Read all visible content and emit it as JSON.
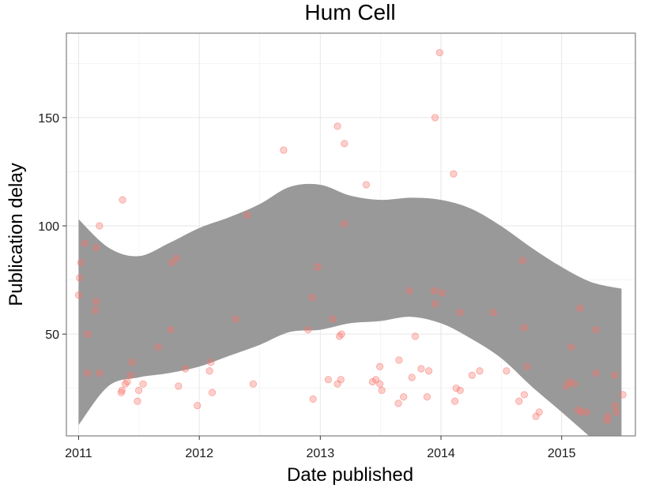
{
  "chart_data": {
    "type": "scatter",
    "title": "Hum Cell",
    "xlabel": "Date published",
    "ylabel": "Publication delay",
    "x_axis_type": "date",
    "xlim": [
      "2010-11-25",
      "2015-08-12"
    ],
    "ylim": [
      3,
      189
    ],
    "x_ticks": [
      {
        "label": "2011",
        "value": "2011-01-01"
      },
      {
        "label": "2012",
        "value": "2012-01-01"
      },
      {
        "label": "2013",
        "value": "2013-01-01"
      },
      {
        "label": "2014",
        "value": "2014-01-01"
      },
      {
        "label": "2015",
        "value": "2015-01-01"
      }
    ],
    "y_ticks": [
      50,
      100,
      150
    ],
    "grid": true,
    "point_color": "#f8766d",
    "band_color": "#999999",
    "points": [
      {
        "x": "2011-01-01",
        "y": 68
      },
      {
        "x": "2011-01-04",
        "y": 76
      },
      {
        "x": "2011-01-08",
        "y": 83
      },
      {
        "x": "2011-01-20",
        "y": 92
      },
      {
        "x": "2011-01-28",
        "y": 50
      },
      {
        "x": "2011-01-28",
        "y": 32
      },
      {
        "x": "2011-02-20",
        "y": 61
      },
      {
        "x": "2011-02-23",
        "y": 65
      },
      {
        "x": "2011-02-23",
        "y": 90
      },
      {
        "x": "2011-03-05",
        "y": 100
      },
      {
        "x": "2011-03-05",
        "y": 32
      },
      {
        "x": "2011-05-10",
        "y": 23
      },
      {
        "x": "2011-05-12",
        "y": 24
      },
      {
        "x": "2011-05-14",
        "y": 112
      },
      {
        "x": "2011-05-22",
        "y": 27
      },
      {
        "x": "2011-05-28",
        "y": 28
      },
      {
        "x": "2011-06-08",
        "y": 31
      },
      {
        "x": "2011-06-12",
        "y": 37
      },
      {
        "x": "2011-06-28",
        "y": 19
      },
      {
        "x": "2011-07-02",
        "y": 24
      },
      {
        "x": "2011-07-15",
        "y": 27
      },
      {
        "x": "2011-08-30",
        "y": 44
      },
      {
        "x": "2011-10-06",
        "y": 52
      },
      {
        "x": "2011-10-10",
        "y": 83
      },
      {
        "x": "2011-10-24",
        "y": 85
      },
      {
        "x": "2011-10-30",
        "y": 26
      },
      {
        "x": "2011-11-20",
        "y": 34
      },
      {
        "x": "2011-12-26",
        "y": 17
      },
      {
        "x": "2012-02-01",
        "y": 33
      },
      {
        "x": "2012-02-05",
        "y": 37
      },
      {
        "x": "2012-02-09",
        "y": 23
      },
      {
        "x": "2012-04-20",
        "y": 57
      },
      {
        "x": "2012-05-25",
        "y": 105
      },
      {
        "x": "2012-06-12",
        "y": 27
      },
      {
        "x": "2012-09-12",
        "y": 135
      },
      {
        "x": "2012-11-25",
        "y": 52
      },
      {
        "x": "2012-12-08",
        "y": 67
      },
      {
        "x": "2012-12-10",
        "y": 20
      },
      {
        "x": "2012-12-24",
        "y": 81
      },
      {
        "x": "2013-01-25",
        "y": 29
      },
      {
        "x": "2013-02-08",
        "y": 57
      },
      {
        "x": "2013-02-22",
        "y": 27
      },
      {
        "x": "2013-02-22",
        "y": 146
      },
      {
        "x": "2013-02-28",
        "y": 49
      },
      {
        "x": "2013-03-04",
        "y": 29
      },
      {
        "x": "2013-03-06",
        "y": 50
      },
      {
        "x": "2013-03-15",
        "y": 101
      },
      {
        "x": "2013-03-15",
        "y": 138
      },
      {
        "x": "2013-05-20",
        "y": 119
      },
      {
        "x": "2013-06-08",
        "y": 28
      },
      {
        "x": "2013-06-18",
        "y": 29
      },
      {
        "x": "2013-06-30",
        "y": 35
      },
      {
        "x": "2013-06-30",
        "y": 27
      },
      {
        "x": "2013-07-06",
        "y": 24
      },
      {
        "x": "2013-08-25",
        "y": 18
      },
      {
        "x": "2013-08-27",
        "y": 38
      },
      {
        "x": "2013-09-10",
        "y": 21
      },
      {
        "x": "2013-09-28",
        "y": 70
      },
      {
        "x": "2013-10-05",
        "y": 30
      },
      {
        "x": "2013-10-15",
        "y": 49
      },
      {
        "x": "2013-11-02",
        "y": 34
      },
      {
        "x": "2013-11-20",
        "y": 21
      },
      {
        "x": "2013-11-25",
        "y": 33
      },
      {
        "x": "2013-12-12",
        "y": 70
      },
      {
        "x": "2013-12-14",
        "y": 64
      },
      {
        "x": "2013-12-14",
        "y": 150
      },
      {
        "x": "2013-12-28",
        "y": 180
      },
      {
        "x": "2014-01-04",
        "y": 69
      },
      {
        "x": "2014-02-08",
        "y": 124
      },
      {
        "x": "2014-02-12",
        "y": 19
      },
      {
        "x": "2014-02-16",
        "y": 25
      },
      {
        "x": "2014-02-28",
        "y": 60
      },
      {
        "x": "2014-02-28",
        "y": 24
      },
      {
        "x": "2014-04-05",
        "y": 31
      },
      {
        "x": "2014-04-28",
        "y": 33
      },
      {
        "x": "2014-06-08",
        "y": 60
      },
      {
        "x": "2014-07-18",
        "y": 33
      },
      {
        "x": "2014-08-25",
        "y": 19
      },
      {
        "x": "2014-09-05",
        "y": 84
      },
      {
        "x": "2014-09-10",
        "y": 22
      },
      {
        "x": "2014-09-10",
        "y": 53
      },
      {
        "x": "2014-09-18",
        "y": 35
      },
      {
        "x": "2014-10-15",
        "y": 12
      },
      {
        "x": "2014-10-25",
        "y": 14
      },
      {
        "x": "2015-01-15",
        "y": 26
      },
      {
        "x": "2015-01-25",
        "y": 28
      },
      {
        "x": "2015-01-30",
        "y": 44
      },
      {
        "x": "2015-02-08",
        "y": 27
      },
      {
        "x": "2015-02-20",
        "y": 15
      },
      {
        "x": "2015-02-25",
        "y": 62
      },
      {
        "x": "2015-03-01",
        "y": 14
      },
      {
        "x": "2015-03-18",
        "y": 14
      },
      {
        "x": "2015-04-15",
        "y": 32
      },
      {
        "x": "2015-04-15",
        "y": 52
      },
      {
        "x": "2015-05-18",
        "y": 10
      },
      {
        "x": "2015-05-20",
        "y": 12
      },
      {
        "x": "2015-06-10",
        "y": 31
      },
      {
        "x": "2015-06-12",
        "y": 17
      },
      {
        "x": "2015-06-15",
        "y": 14
      },
      {
        "x": "2015-07-05",
        "y": 22
      }
    ],
    "confidence_band": {
      "x": [
        "2011-01-01",
        "2011-04-01",
        "2011-07-01",
        "2011-10-01",
        "2012-01-01",
        "2012-04-01",
        "2012-07-01",
        "2012-10-01",
        "2013-01-01",
        "2013-04-01",
        "2013-07-01",
        "2013-10-01",
        "2014-01-01",
        "2014-04-01",
        "2014-07-01",
        "2014-10-01",
        "2015-01-01",
        "2015-04-01",
        "2015-07-01"
      ],
      "upper": [
        103,
        90,
        86,
        92,
        99,
        104,
        110,
        118,
        119,
        114,
        112,
        113,
        112,
        108,
        100,
        90,
        81,
        74,
        71
      ],
      "lower": [
        8,
        26,
        30,
        32,
        35,
        40,
        45,
        51,
        52,
        55,
        56,
        58,
        55,
        48,
        39,
        26,
        14,
        2,
        -10
      ]
    }
  }
}
